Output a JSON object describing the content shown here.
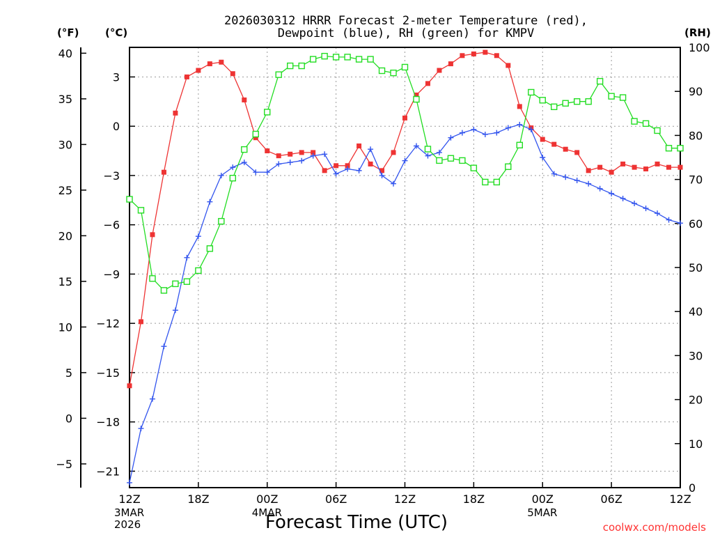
{
  "chart_data": {
    "type": "line",
    "title": [
      "2026030312 HRRR Forecast 2-meter Temperature (red),",
      "Dewpoint (blue), RH (green) for KMPV"
    ],
    "xlabel": "Forecast Time (UTC)",
    "credit": "coolwx.com/models",
    "units": {
      "left_f": "(°F)",
      "left_c": "(°C)",
      "right": "(RH)"
    },
    "x_hours": [
      0,
      1,
      2,
      3,
      4,
      5,
      6,
      7,
      8,
      9,
      10,
      11,
      12,
      13,
      14,
      15,
      16,
      17,
      18,
      19,
      20,
      21,
      22,
      23,
      24,
      25,
      26,
      27,
      28,
      29,
      30,
      31,
      32,
      33,
      34,
      35,
      36,
      37,
      38,
      39,
      40,
      41,
      42,
      43,
      44,
      45,
      46,
      47,
      48
    ],
    "xlim": [
      0,
      48
    ],
    "x_ticks": [
      {
        "hour": 0,
        "label": "12Z",
        "sub": [
          "3MAR",
          "2026"
        ]
      },
      {
        "hour": 6,
        "label": "18Z",
        "sub": []
      },
      {
        "hour": 12,
        "label": "00Z",
        "sub": [
          "4MAR"
        ]
      },
      {
        "hour": 18,
        "label": "06Z",
        "sub": []
      },
      {
        "hour": 24,
        "label": "12Z",
        "sub": []
      },
      {
        "hour": 30,
        "label": "18Z",
        "sub": []
      },
      {
        "hour": 36,
        "label": "00Z",
        "sub": [
          "5MAR"
        ]
      },
      {
        "hour": 42,
        "label": "06Z",
        "sub": []
      },
      {
        "hour": 48,
        "label": "12Z",
        "sub": []
      }
    ],
    "axes": {
      "celsius": {
        "ylim": [
          -22.0,
          4.8
        ],
        "ticks": [
          "3",
          "0",
          "−3",
          "−6",
          "−9",
          "−12",
          "−15",
          "−18",
          "−21"
        ]
      },
      "fahrenheit": {
        "ticks": [
          "40",
          "35",
          "30",
          "25",
          "20",
          "15",
          "10",
          "5",
          "0",
          "−5"
        ]
      },
      "rh": {
        "ylim": [
          0,
          100
        ],
        "ticks": [
          "100",
          "90",
          "80",
          "70",
          "60",
          "50",
          "40",
          "30",
          "20",
          "10",
          "0"
        ]
      }
    },
    "series": [
      {
        "name": "2-meter Temperature",
        "unit": "°C",
        "color": "#ee3333",
        "marker": "filled-square",
        "values": [
          -15.8,
          -11.9,
          -6.6,
          -2.8,
          0.8,
          3.0,
          3.4,
          3.8,
          3.9,
          3.2,
          1.6,
          -0.7,
          -1.5,
          -1.8,
          -1.7,
          -1.6,
          -1.6,
          -2.7,
          -2.4,
          -2.4,
          -1.2,
          -2.3,
          -2.7,
          -1.6,
          0.5,
          1.9,
          2.6,
          3.4,
          3.8,
          4.3,
          4.4,
          4.5,
          4.3,
          3.7,
          1.2,
          -0.1,
          -0.8,
          -1.1,
          -1.4,
          -1.6,
          -2.7,
          -2.5,
          -2.8,
          -2.3,
          -2.5,
          -2.6,
          -2.3,
          -2.5,
          -2.5
        ]
      },
      {
        "name": "Dewpoint",
        "unit": "°C",
        "color": "#3355ee",
        "marker": "plus",
        "values": [
          -21.7,
          -18.4,
          -16.6,
          -13.4,
          -11.2,
          -8.0,
          -6.7,
          -4.6,
          -3.0,
          -2.5,
          -2.2,
          -2.8,
          -2.8,
          -2.3,
          -2.2,
          -2.1,
          -1.8,
          -1.7,
          -2.9,
          -2.6,
          -2.7,
          -1.4,
          -3.0,
          -3.5,
          -2.1,
          -1.2,
          -1.8,
          -1.6,
          -0.7,
          -0.4,
          -0.2,
          -0.5,
          -0.4,
          -0.1,
          0.1,
          -0.2,
          -1.9,
          -2.9,
          -3.1,
          -3.3,
          -3.5,
          -3.8,
          -4.1,
          -4.4,
          -4.7,
          -5.0,
          -5.3,
          -5.7,
          -5.9
        ]
      },
      {
        "name": "RH",
        "unit": "%",
        "color": "#22dd22",
        "marker": "open-square",
        "values": [
          65.5,
          63.0,
          47.5,
          44.8,
          46.3,
          46.8,
          49.3,
          54.3,
          60.5,
          70.3,
          76.8,
          80.3,
          85.3,
          93.8,
          95.8,
          95.8,
          97.3,
          98.0,
          97.8,
          97.8,
          97.3,
          97.3,
          94.7,
          94.2,
          95.5,
          88.2,
          76.9,
          74.3,
          74.8,
          74.3,
          72.6,
          69.4,
          69.4,
          72.9,
          77.8,
          89.8,
          88.0,
          86.5,
          87.3,
          87.7,
          87.7,
          92.3,
          88.9,
          88.6,
          83.2,
          82.7,
          81.1,
          77.1,
          77.1
        ]
      }
    ]
  }
}
